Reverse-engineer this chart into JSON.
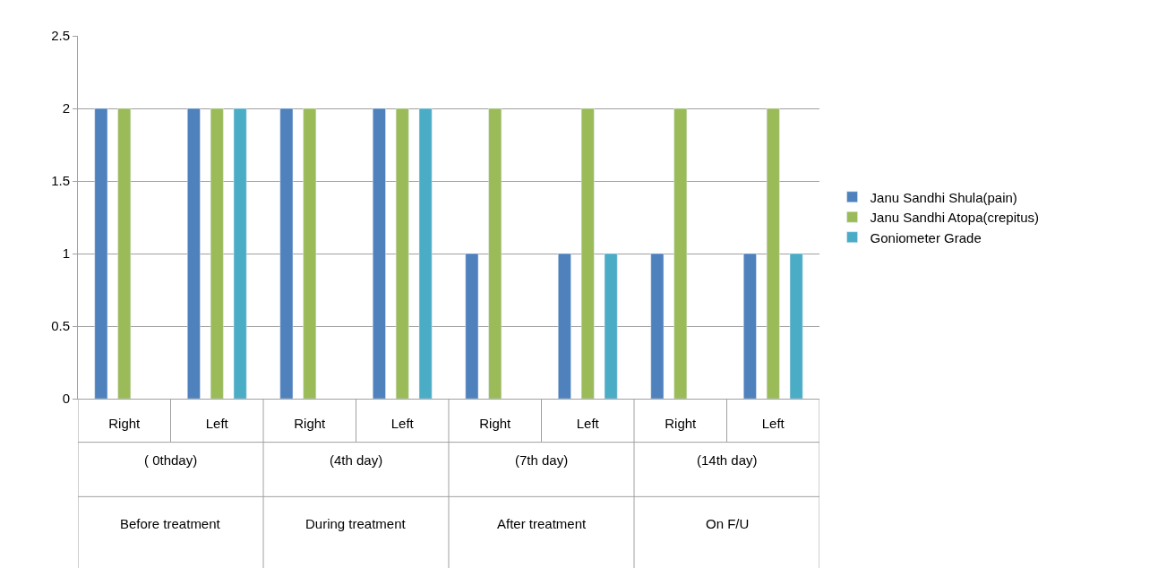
{
  "chart_data": {
    "type": "bar",
    "categories": [
      "Right",
      "Left",
      "Right",
      "Left",
      "Right",
      "Left",
      "Right",
      "Left"
    ],
    "series": [
      {
        "name": "Janu Sandhi Shula(pain)",
        "color": "#4f81bd",
        "values": [
          2,
          2,
          2,
          2,
          1,
          1,
          1,
          1
        ]
      },
      {
        "name": "Janu Sandhi Atopa(crepitus)",
        "color": "#9bbb59",
        "values": [
          2,
          2,
          2,
          2,
          2,
          2,
          2,
          2
        ]
      },
      {
        "name": "Goniometer Grade",
        "color": "#4bacc6",
        "values": [
          null,
          2,
          null,
          2,
          null,
          1,
          null,
          1
        ]
      }
    ],
    "annotations": [
      "( 0thday)",
      "Before treatment",
      "(4th day)",
      "During treatment",
      "(7th day)",
      "After treatment",
      "(14th day)",
      "On F/U"
    ],
    "ylim": [
      0,
      2.5
    ],
    "yticks": [
      0,
      0.5,
      1,
      1.5,
      2,
      2.5
    ],
    "grid": "y",
    "legend": "right"
  }
}
